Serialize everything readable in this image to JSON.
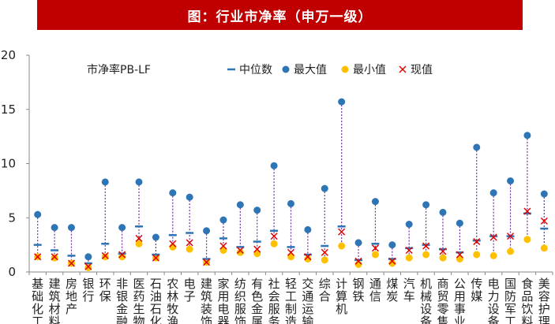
{
  "chart_data": {
    "type": "scatter",
    "title": "图：行业市净率（申万一级）",
    "subtitle": "市净率PB-LF",
    "ylim": [
      0,
      20
    ],
    "yticks": [
      0,
      5,
      10,
      15,
      20
    ],
    "legend": {
      "position": "top",
      "entries": [
        {
          "name": "中位数",
          "marker": "dash",
          "color": "#2e75b6"
        },
        {
          "name": "最大值",
          "marker": "circle",
          "color": "#2e75b6"
        },
        {
          "name": "最小值",
          "marker": "circle",
          "color": "#ffc000"
        },
        {
          "name": "现值",
          "marker": "x",
          "color": "#e00000"
        }
      ]
    },
    "categories": [
      "基础化工",
      "建筑材料",
      "房地产",
      "银行",
      "环保",
      "非银金融",
      "医药生物",
      "石油石化",
      "农林牧渔",
      "电子",
      "建筑装饰",
      "家用电器",
      "纺织服饰",
      "有色金属",
      "社会服务",
      "轻工制造",
      "交通运输",
      "综合",
      "计算机",
      "钢铁",
      "通信",
      "煤炭",
      "汽车",
      "机械设备",
      "商贸零售",
      "公用事业",
      "传媒",
      "电力设备",
      "国防军工",
      "食品饮料",
      "美容护理"
    ],
    "series": [
      {
        "name": "中位数",
        "values": [
          2.5,
          2.0,
          1.5,
          0.8,
          2.6,
          1.7,
          4.2,
          1.6,
          3.4,
          3.6,
          1.2,
          3.1,
          2.3,
          2.8,
          3.8,
          2.3,
          1.6,
          2.4,
          4.2,
          1.1,
          2.6,
          1.2,
          2.2,
          2.5,
          2.1,
          1.8,
          2.9,
          3.3,
          3.3,
          5.4,
          4.0
        ]
      },
      {
        "name": "最大值",
        "values": [
          5.3,
          4.1,
          4.1,
          1.4,
          8.3,
          4.1,
          8.3,
          3.2,
          7.3,
          6.9,
          3.8,
          4.8,
          6.2,
          5.7,
          9.8,
          6.3,
          3.9,
          7.7,
          15.7,
          2.7,
          6.5,
          2.5,
          4.4,
          6.2,
          5.5,
          4.5,
          11.5,
          7.3,
          8.4,
          12.6,
          7.2
        ]
      },
      {
        "name": "最小值",
        "values": [
          1.4,
          1.3,
          0.8,
          0.4,
          1.4,
          1.4,
          2.6,
          1.3,
          2.3,
          2.1,
          0.9,
          2.0,
          1.8,
          1.7,
          2.6,
          1.4,
          1.2,
          1.1,
          2.4,
          0.7,
          1.6,
          0.8,
          1.3,
          1.6,
          1.3,
          1.2,
          1.6,
          1.5,
          1.9,
          3.0,
          2.2
        ]
      },
      {
        "name": "现值",
        "values": [
          1.4,
          1.4,
          0.8,
          0.5,
          1.5,
          1.6,
          3.1,
          1.3,
          2.6,
          2.7,
          0.9,
          2.4,
          2.0,
          2.1,
          3.3,
          1.8,
          1.4,
          1.8,
          3.7,
          1.0,
          2.2,
          1.0,
          2.0,
          2.4,
          1.9,
          1.6,
          2.8,
          3.2,
          3.3,
          5.6,
          4.7
        ]
      }
    ]
  }
}
